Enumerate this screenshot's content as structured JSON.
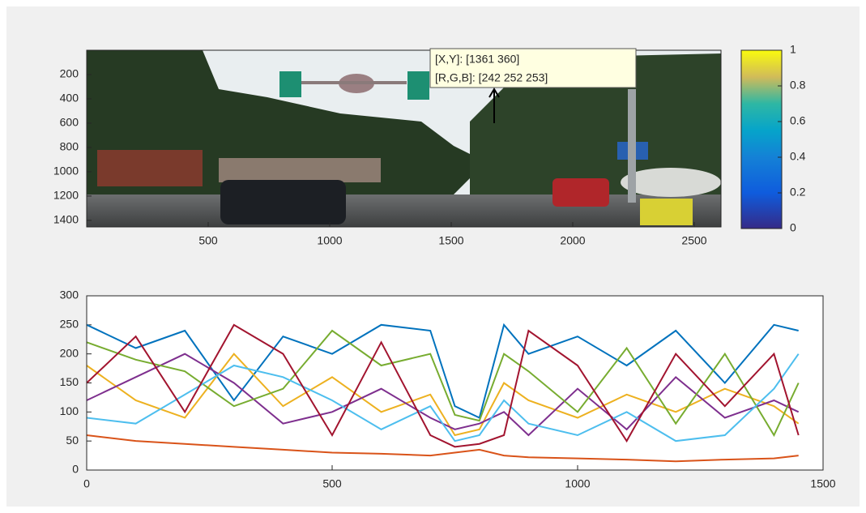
{
  "chart_data": [
    {
      "type": "image",
      "xlim": [
        0,
        2610
      ],
      "ylim": [
        0,
        1454
      ],
      "xticks": [
        500,
        1000,
        1500,
        2000,
        2500
      ],
      "yticks": [
        200,
        400,
        600,
        800,
        1000,
        1200,
        1400
      ],
      "datatip": [
        "[X,Y]: [1361 360]",
        "[R,G,B]: [242 252 253]"
      ],
      "colorbar": {
        "lim": [
          0,
          1
        ],
        "ticks": [
          0,
          0.2,
          0.4,
          0.6,
          0.8,
          1
        ]
      }
    },
    {
      "type": "line",
      "xlim": [
        0,
        1500
      ],
      "ylim": [
        0,
        300
      ],
      "xticks": [
        0,
        500,
        1000,
        1500
      ],
      "yticks": [
        0,
        50,
        100,
        150,
        200,
        250,
        300
      ],
      "x": [
        0,
        100,
        200,
        300,
        400,
        500,
        600,
        700,
        750,
        800,
        850,
        900,
        1000,
        1100,
        1200,
        1300,
        1400,
        1450
      ],
      "series": [
        {
          "color": "#0072BD",
          "values": [
            250,
            210,
            240,
            120,
            230,
            200,
            250,
            240,
            110,
            90,
            250,
            200,
            230,
            180,
            240,
            150,
            250,
            240
          ]
        },
        {
          "color": "#D95319",
          "values": [
            60,
            50,
            45,
            40,
            35,
            30,
            28,
            25,
            30,
            35,
            25,
            22,
            20,
            18,
            15,
            18,
            20,
            25
          ]
        },
        {
          "color": "#EDB120",
          "values": [
            180,
            120,
            90,
            200,
            110,
            160,
            100,
            130,
            60,
            70,
            150,
            120,
            90,
            130,
            100,
            140,
            110,
            80
          ]
        },
        {
          "color": "#7E2F8E",
          "values": [
            120,
            160,
            200,
            150,
            80,
            100,
            140,
            90,
            70,
            80,
            100,
            60,
            140,
            70,
            160,
            90,
            120,
            100
          ]
        },
        {
          "color": "#77AC30",
          "values": [
            220,
            190,
            170,
            110,
            140,
            240,
            180,
            200,
            95,
            85,
            200,
            170,
            100,
            210,
            80,
            200,
            60,
            150
          ]
        },
        {
          "color": "#4DBEEE",
          "values": [
            90,
            80,
            130,
            180,
            160,
            120,
            70,
            110,
            50,
            60,
            120,
            80,
            60,
            100,
            50,
            60,
            140,
            200
          ]
        },
        {
          "color": "#A2142F",
          "values": [
            150,
            230,
            100,
            250,
            200,
            60,
            220,
            60,
            40,
            45,
            60,
            240,
            180,
            50,
            200,
            110,
            200,
            60
          ]
        }
      ]
    }
  ]
}
